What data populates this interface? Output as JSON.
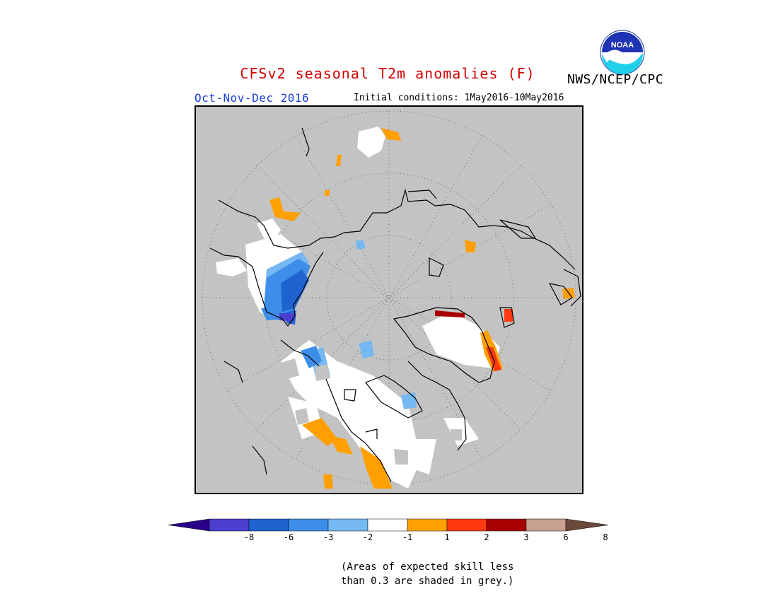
{
  "title": "CFSv2 seasonal T2m anomalies (F)",
  "agency": "NWS/NCEP/CPC",
  "logo_text": "NOAA",
  "season": "Oct-Nov-Dec 2016",
  "initial_conditions": "Initial conditions: 1May2016-10May2016",
  "legend": {
    "ticks": [
      "-8",
      "-6",
      "-3",
      "-2",
      "-1",
      "1",
      "2",
      "3",
      "6",
      "8"
    ],
    "colors": [
      "#3a00b0",
      "#4a3fd0",
      "#1f63d0",
      "#3d8ee8",
      "#75b8f2",
      "#ffffff",
      "#ffa000",
      "#ff3a10",
      "#a80000",
      "#c8a090",
      "#6a4a3a"
    ],
    "low_arrow_color": "#2a008a",
    "high_arrow_color": "#6a4a3a"
  },
  "note_line1": "(Areas of expected skill less",
  "note_line2": "than 0.3 are shaded in grey.)",
  "map": {
    "projection": "north-polar-stereographic",
    "background_grey": "#c3c3c3",
    "coastline_color": "#000000",
    "graticule": "dotted"
  }
}
